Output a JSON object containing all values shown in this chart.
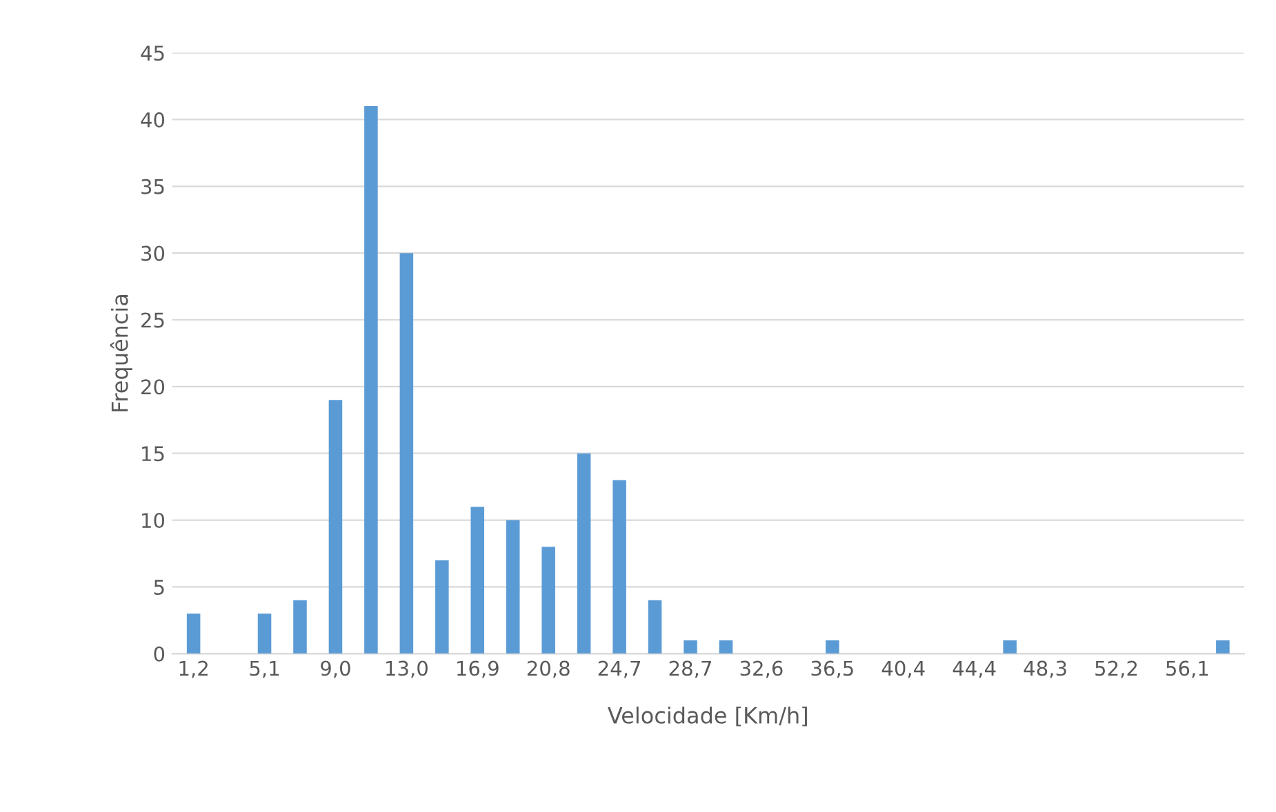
{
  "chart_data": {
    "type": "bar",
    "xlabel": "Velocidade [Km/h]",
    "ylabel": "Frequência",
    "categories": [
      "1,2",
      null,
      "5,1",
      null,
      "9,0",
      null,
      "13,0",
      null,
      "16,9",
      null,
      "20,8",
      null,
      "24,7",
      null,
      "28,7",
      null,
      "32,6",
      null,
      "36,5",
      null,
      "40,4",
      null,
      "44,4",
      null,
      "48,3",
      null,
      "52,2",
      null,
      "56,1",
      null
    ],
    "values": [
      3,
      0,
      3,
      4,
      19,
      41,
      30,
      7,
      11,
      10,
      8,
      15,
      13,
      4,
      1,
      1,
      0,
      0,
      1,
      0,
      0,
      0,
      0,
      1,
      0,
      0,
      0,
      0,
      0,
      1
    ],
    "color": "#5b9bd5",
    "ylim": [
      0,
      45
    ],
    "yticks": [
      0,
      5,
      10,
      15,
      20,
      25,
      30,
      35,
      40,
      45
    ],
    "grid": "y"
  }
}
